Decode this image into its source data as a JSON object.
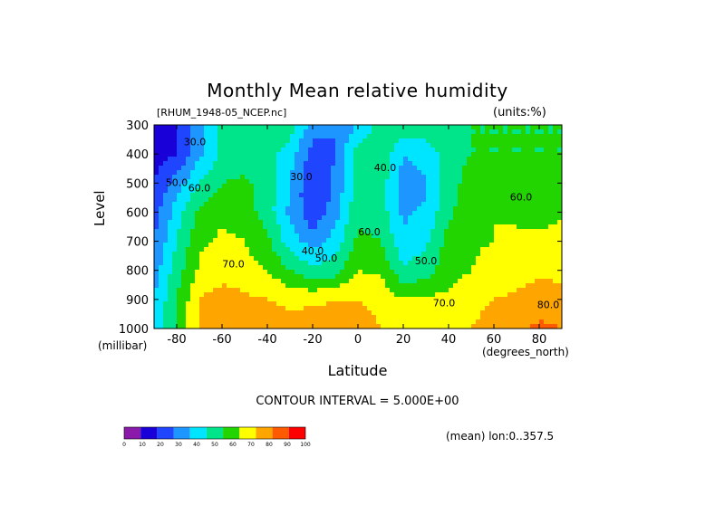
{
  "chart_data": {
    "type": "heatmap",
    "title": "Monthly Mean relative humidity",
    "subtitle_left": "[RHUM_1948-05_NCEP.nc]",
    "subtitle_right": "(units:%)",
    "xlabel": "Latitude",
    "xunit": "(degrees_north)",
    "ylabel": "Level",
    "yunit": "(millibar)",
    "xlim": [
      -90,
      90
    ],
    "ylim": [
      1000,
      300
    ],
    "x_ticks": [
      -80,
      -60,
      -40,
      -20,
      0,
      20,
      40,
      60,
      80
    ],
    "y_ticks": [
      300,
      400,
      500,
      600,
      700,
      800,
      900,
      1000
    ],
    "contour_interval_text": "CONTOUR INTERVAL = 5.000E+00",
    "mean_info": "(mean) lon:0..357.5",
    "contour_labels": [
      {
        "text": "30.0",
        "lat": -72,
        "lev": 360
      },
      {
        "text": "50.0",
        "lat": -80,
        "lev": 500
      },
      {
        "text": "60.0",
        "lat": -70,
        "lev": 520
      },
      {
        "text": "30.0",
        "lat": -25,
        "lev": 480
      },
      {
        "text": "40.0",
        "lat": -20,
        "lev": 735
      },
      {
        "text": "50.0",
        "lat": -14,
        "lev": 760
      },
      {
        "text": "60.0",
        "lat": 5,
        "lev": 670
      },
      {
        "text": "40.0",
        "lat": 12,
        "lev": 450
      },
      {
        "text": "50.0",
        "lat": 30,
        "lev": 770
      },
      {
        "text": "70.0",
        "lat": -55,
        "lev": 780
      },
      {
        "text": "70.0",
        "lat": 38,
        "lev": 915
      },
      {
        "text": "60.0",
        "lat": 72,
        "lev": 550
      },
      {
        "text": "80.0",
        "lat": 84,
        "lev": 920
      }
    ],
    "colorbar": {
      "ticks": [
        "0",
        "10",
        "20",
        "30",
        "40",
        "50",
        "60",
        "70",
        "80",
        "90",
        "100"
      ],
      "colors": [
        "#8b1aab",
        "#1a00d8",
        "#1f45ff",
        "#1e96ff",
        "#00e5ff",
        "#00e58a",
        "#22d400",
        "#ffff00",
        "#ffa500",
        "#ff5a00",
        "#ff0000"
      ]
    },
    "grid": {
      "lats": [
        -90,
        -80,
        -70,
        -60,
        -50,
        -40,
        -30,
        -20,
        -10,
        0,
        10,
        20,
        30,
        40,
        50,
        60,
        70,
        80,
        90
      ],
      "levels": [
        300,
        400,
        500,
        600,
        700,
        800,
        900,
        1000
      ],
      "values": [
        [
          15,
          20,
          35,
          55,
          60,
          60,
          55,
          35,
          30,
          40,
          55,
          60,
          55,
          55,
          60,
          60,
          60,
          60,
          60
        ],
        [
          15,
          20,
          38,
          52,
          55,
          55,
          45,
          25,
          30,
          55,
          60,
          40,
          45,
          55,
          60,
          60,
          60,
          60,
          60
        ],
        [
          20,
          35,
          50,
          60,
          62,
          55,
          40,
          20,
          32,
          55,
          55,
          35,
          38,
          55,
          65,
          66,
          65,
          62,
          65
        ],
        [
          25,
          45,
          62,
          68,
          65,
          55,
          38,
          22,
          35,
          58,
          55,
          38,
          42,
          58,
          66,
          70,
          68,
          66,
          68
        ],
        [
          30,
          50,
          68,
          72,
          70,
          62,
          45,
          35,
          45,
          62,
          60,
          42,
          48,
          64,
          69,
          70,
          72,
          72,
          75
        ],
        [
          35,
          55,
          72,
          75,
          74,
          70,
          60,
          52,
          55,
          70,
          68,
          52,
          55,
          66,
          70,
          73,
          75,
          78,
          78
        ],
        [
          40,
          60,
          80,
          85,
          82,
          80,
          78,
          78,
          80,
          80,
          78,
          70,
          72,
          72,
          76,
          80,
          82,
          85,
          82
        ],
        [
          42,
          62,
          82,
          88,
          86,
          84,
          83,
          86,
          85,
          84,
          80,
          76,
          74,
          76,
          80,
          85,
          88,
          92,
          90
        ]
      ]
    }
  }
}
